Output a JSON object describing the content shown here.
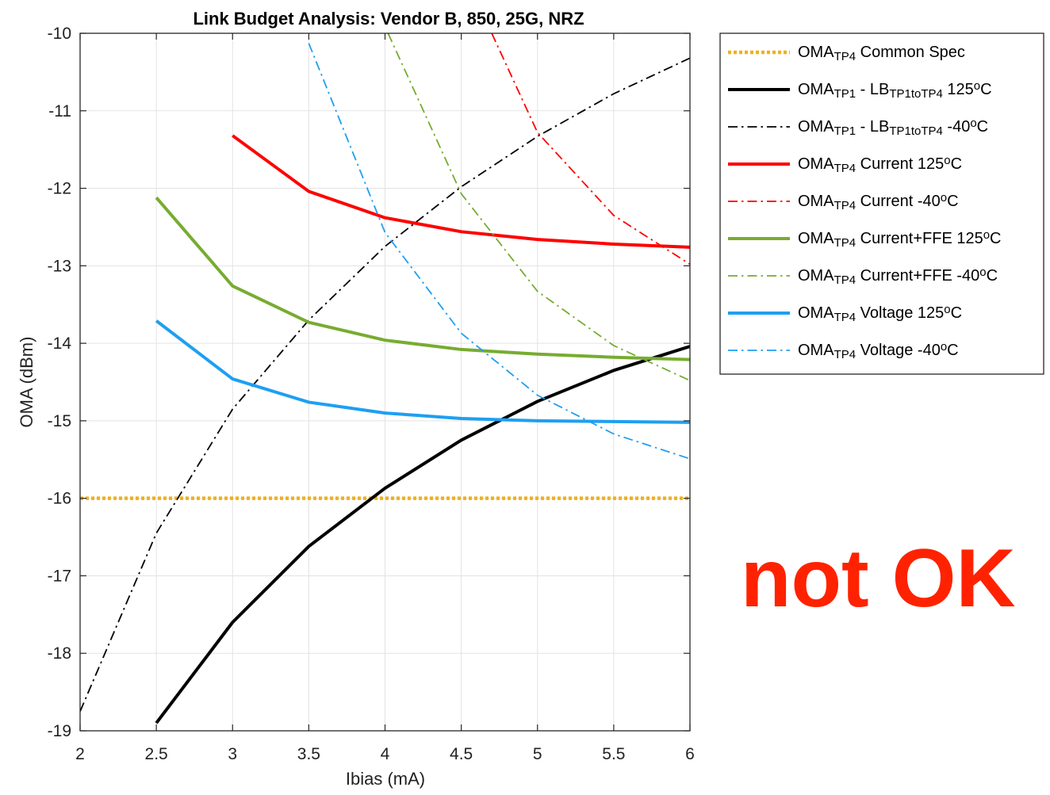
{
  "chart_data": {
    "type": "line",
    "title": "Link Budget Analysis: Vendor B, 850, 25G, NRZ",
    "xlabel": "Ibias (mA)",
    "ylabel": "OMA (dBm)",
    "xlim": [
      2,
      6
    ],
    "ylim": [
      -19,
      -10
    ],
    "xticks": [
      "2",
      "2.5",
      "3",
      "3.5",
      "4",
      "4.5",
      "5",
      "5.5",
      "6"
    ],
    "yticks": [
      "-10",
      "-11",
      "-12",
      "-13",
      "-14",
      "-15",
      "-16",
      "-17",
      "-18",
      "-19"
    ],
    "grid": true,
    "legend_position": "outside-right-top",
    "series": [
      {
        "legend": [
          [
            "OMA",
            ""
          ],
          [
            "TP4",
            "sub"
          ],
          [
            " Common Spec",
            ""
          ]
        ],
        "color": "#EDB120",
        "style": "dotted",
        "width": 4.5,
        "x": [
          2,
          6
        ],
        "y": [
          -16,
          -16
        ]
      },
      {
        "legend": [
          [
            "OMA",
            ""
          ],
          [
            "TP1",
            "sub"
          ],
          [
            " - LB",
            ""
          ],
          [
            "TP1toTP4",
            "sub"
          ],
          [
            " 125",
            ""
          ],
          [
            "o",
            "sup"
          ],
          [
            "C",
            ""
          ]
        ],
        "color": "#000000",
        "style": "solid",
        "width": 4,
        "x": [
          2.5,
          3,
          3.5,
          4,
          4.5,
          5,
          5.5,
          6
        ],
        "y": [
          -18.9,
          -17.6,
          -16.62,
          -15.87,
          -15.25,
          -14.75,
          -14.35,
          -14.04
        ]
      },
      {
        "legend": [
          [
            "OMA",
            ""
          ],
          [
            "TP1",
            "sub"
          ],
          [
            " - LB",
            ""
          ],
          [
            "TP1toTP4",
            "sub"
          ],
          [
            " -40",
            ""
          ],
          [
            "o",
            "sup"
          ],
          [
            "C",
            ""
          ]
        ],
        "color": "#000000",
        "style": "dashdot",
        "width": 1.8,
        "x": [
          2,
          2.5,
          3,
          3.5,
          4,
          4.5,
          5,
          5.5,
          6
        ],
        "y": [
          -18.75,
          -16.45,
          -14.85,
          -13.7,
          -12.75,
          -11.98,
          -11.33,
          -10.78,
          -10.32
        ]
      },
      {
        "legend": [
          [
            "OMA",
            ""
          ],
          [
            "TP4",
            "sub"
          ],
          [
            " Current 125",
            ""
          ],
          [
            "o",
            "sup"
          ],
          [
            "C",
            ""
          ]
        ],
        "color": "#FF0000",
        "style": "solid",
        "width": 4,
        "x": [
          3,
          3.5,
          4,
          4.5,
          5,
          5.5,
          6
        ],
        "y": [
          -11.32,
          -12.04,
          -12.38,
          -12.56,
          -12.66,
          -12.72,
          -12.76
        ]
      },
      {
        "legend": [
          [
            "OMA",
            ""
          ],
          [
            "TP4",
            "sub"
          ],
          [
            " Current -40",
            ""
          ],
          [
            "o",
            "sup"
          ],
          [
            "C",
            ""
          ]
        ],
        "color": "#FF0000",
        "style": "dashdot",
        "width": 1.8,
        "x": [
          4.7,
          5,
          5.5,
          6
        ],
        "y": [
          -10.0,
          -11.28,
          -12.35,
          -12.98
        ]
      },
      {
        "legend": [
          [
            "OMA",
            ""
          ],
          [
            "TP4",
            "sub"
          ],
          [
            " Current+FFE 125",
            ""
          ],
          [
            "o",
            "sup"
          ],
          [
            "C",
            ""
          ]
        ],
        "color": "#77AC30",
        "style": "solid",
        "width": 4,
        "x": [
          2.5,
          3,
          3.5,
          4,
          4.5,
          5,
          5.5,
          6
        ],
        "y": [
          -12.12,
          -13.26,
          -13.73,
          -13.96,
          -14.08,
          -14.14,
          -14.18,
          -14.21
        ]
      },
      {
        "legend": [
          [
            "OMA",
            ""
          ],
          [
            "TP4",
            "sub"
          ],
          [
            " Current+FFE -40",
            ""
          ],
          [
            "o",
            "sup"
          ],
          [
            "C",
            ""
          ]
        ],
        "color": "#77AC30",
        "style": "dashdot",
        "width": 1.8,
        "x": [
          4.02,
          4.5,
          5,
          5.5,
          6
        ],
        "y": [
          -10.0,
          -12.07,
          -13.33,
          -14.03,
          -14.48
        ]
      },
      {
        "legend": [
          [
            "OMA",
            ""
          ],
          [
            "TP4",
            "sub"
          ],
          [
            " Voltage 125",
            ""
          ],
          [
            "o",
            "sup"
          ],
          [
            "C",
            ""
          ]
        ],
        "color": "#1E9FF2",
        "style": "solid",
        "width": 4,
        "x": [
          2.5,
          3,
          3.5,
          4,
          4.5,
          5,
          5.5,
          6
        ],
        "y": [
          -13.71,
          -14.46,
          -14.76,
          -14.9,
          -14.97,
          -15.0,
          -15.01,
          -15.02
        ]
      },
      {
        "legend": [
          [
            "OMA",
            ""
          ],
          [
            "TP4",
            "sub"
          ],
          [
            " Voltage -40",
            ""
          ],
          [
            "o",
            "sup"
          ],
          [
            "C",
            ""
          ]
        ],
        "color": "#1E9FF2",
        "style": "dashdot",
        "width": 1.8,
        "x": [
          3.5,
          4,
          4.5,
          5,
          5.5,
          6
        ],
        "y": [
          -10.13,
          -12.57,
          -13.87,
          -14.67,
          -15.17,
          -15.49
        ]
      }
    ],
    "annotation": {
      "text": "not OK",
      "color": "#FF2200"
    }
  }
}
